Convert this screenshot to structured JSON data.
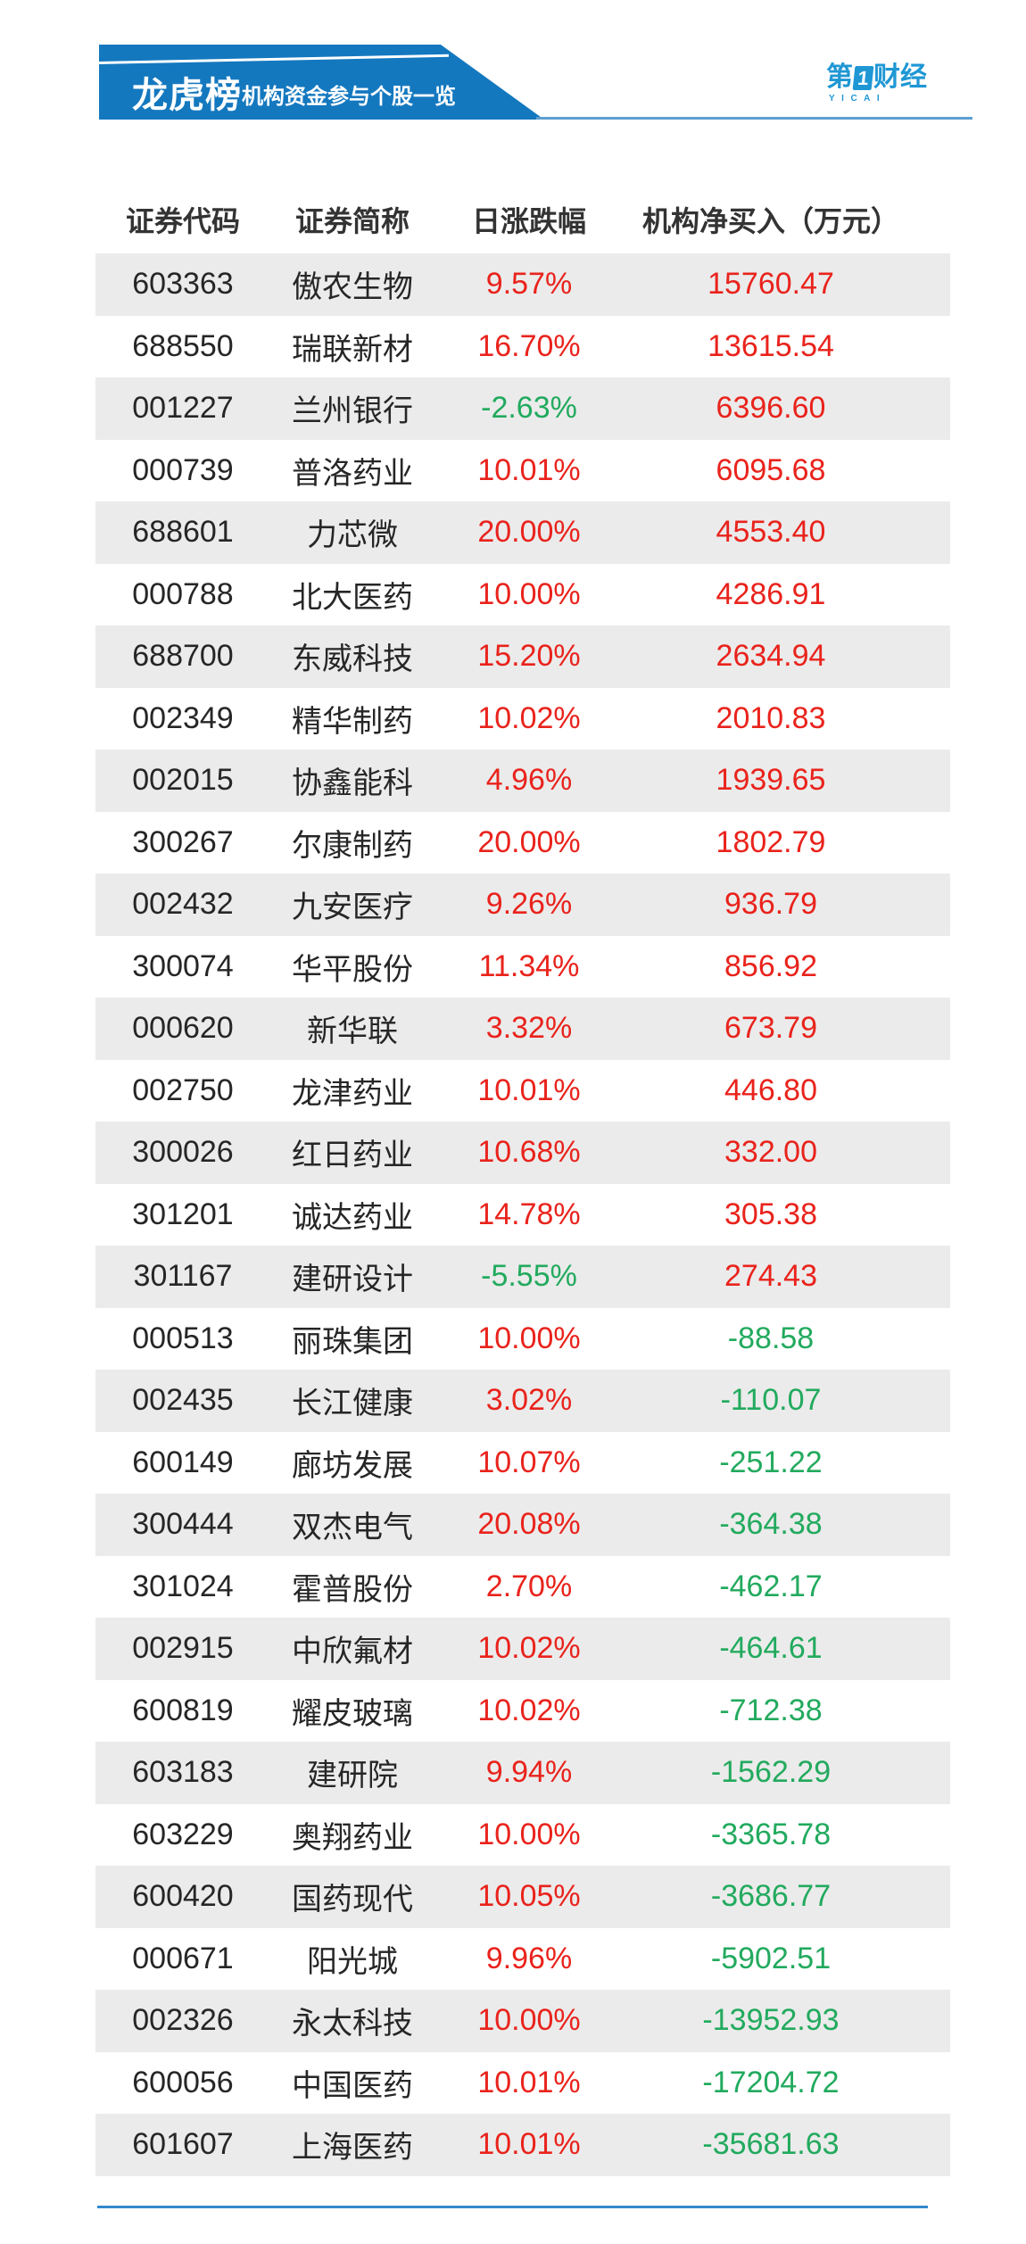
{
  "banner": {
    "title": "龙虎榜",
    "subtitle": "机构资金参与个股一览"
  },
  "logo": {
    "prefix": "第",
    "one": "1",
    "suffix": "财经",
    "sub": "YICAI"
  },
  "colors": {
    "banner_blue": "#1478bf",
    "logo_blue": "#1f97d4",
    "up_red": "#e9231c",
    "down_green": "#22aa5e",
    "row_gray": "#ebebeb"
  },
  "chart_data": {
    "type": "table",
    "title": "龙虎榜 机构资金参与个股一览",
    "headers": [
      "证券代码",
      "证券简称",
      "日涨跌幅",
      "机构净买入（万元）"
    ],
    "rows": [
      {
        "code": "603363",
        "name": "傲农生物",
        "change": "9.57%",
        "net_buy": "15760.47"
      },
      {
        "code": "688550",
        "name": "瑞联新材",
        "change": "16.70%",
        "net_buy": "13615.54"
      },
      {
        "code": "001227",
        "name": "兰州银行",
        "change": "-2.63%",
        "net_buy": "6396.60"
      },
      {
        "code": "000739",
        "name": "普洛药业",
        "change": "10.01%",
        "net_buy": "6095.68"
      },
      {
        "code": "688601",
        "name": "力芯微",
        "change": "20.00%",
        "net_buy": "4553.40"
      },
      {
        "code": "000788",
        "name": "北大医药",
        "change": "10.00%",
        "net_buy": "4286.91"
      },
      {
        "code": "688700",
        "name": "东威科技",
        "change": "15.20%",
        "net_buy": "2634.94"
      },
      {
        "code": "002349",
        "name": "精华制药",
        "change": "10.02%",
        "net_buy": "2010.83"
      },
      {
        "code": "002015",
        "name": "协鑫能科",
        "change": "4.96%",
        "net_buy": "1939.65"
      },
      {
        "code": "300267",
        "name": "尔康制药",
        "change": "20.00%",
        "net_buy": "1802.79"
      },
      {
        "code": "002432",
        "name": "九安医疗",
        "change": "9.26%",
        "net_buy": "936.79"
      },
      {
        "code": "300074",
        "name": "华平股份",
        "change": "11.34%",
        "net_buy": "856.92"
      },
      {
        "code": "000620",
        "name": "新华联",
        "change": "3.32%",
        "net_buy": "673.79"
      },
      {
        "code": "002750",
        "name": "龙津药业",
        "change": "10.01%",
        "net_buy": "446.80"
      },
      {
        "code": "300026",
        "name": "红日药业",
        "change": "10.68%",
        "net_buy": "332.00"
      },
      {
        "code": "301201",
        "name": "诚达药业",
        "change": "14.78%",
        "net_buy": "305.38"
      },
      {
        "code": "301167",
        "name": "建研设计",
        "change": "-5.55%",
        "net_buy": "274.43"
      },
      {
        "code": "000513",
        "name": "丽珠集团",
        "change": "10.00%",
        "net_buy": "-88.58"
      },
      {
        "code": "002435",
        "name": "长江健康",
        "change": "3.02%",
        "net_buy": "-110.07"
      },
      {
        "code": "600149",
        "name": "廊坊发展",
        "change": "10.07%",
        "net_buy": "-251.22"
      },
      {
        "code": "300444",
        "name": "双杰电气",
        "change": "20.08%",
        "net_buy": "-364.38"
      },
      {
        "code": "301024",
        "name": "霍普股份",
        "change": "2.70%",
        "net_buy": "-462.17"
      },
      {
        "code": "002915",
        "name": "中欣氟材",
        "change": "10.02%",
        "net_buy": "-464.61"
      },
      {
        "code": "600819",
        "name": "耀皮玻璃",
        "change": "10.02%",
        "net_buy": "-712.38"
      },
      {
        "code": "603183",
        "name": "建研院",
        "change": "9.94%",
        "net_buy": "-1562.29"
      },
      {
        "code": "603229",
        "name": "奥翔药业",
        "change": "10.00%",
        "net_buy": "-3365.78"
      },
      {
        "code": "600420",
        "name": "国药现代",
        "change": "10.05%",
        "net_buy": "-3686.77"
      },
      {
        "code": "000671",
        "name": "阳光城",
        "change": "9.96%",
        "net_buy": "-5902.51"
      },
      {
        "code": "002326",
        "name": "永太科技",
        "change": "10.00%",
        "net_buy": "-13952.93"
      },
      {
        "code": "600056",
        "name": "中国医药",
        "change": "10.01%",
        "net_buy": "-17204.72"
      },
      {
        "code": "601607",
        "name": "上海医药",
        "change": "10.01%",
        "net_buy": "-35681.63"
      }
    ]
  }
}
